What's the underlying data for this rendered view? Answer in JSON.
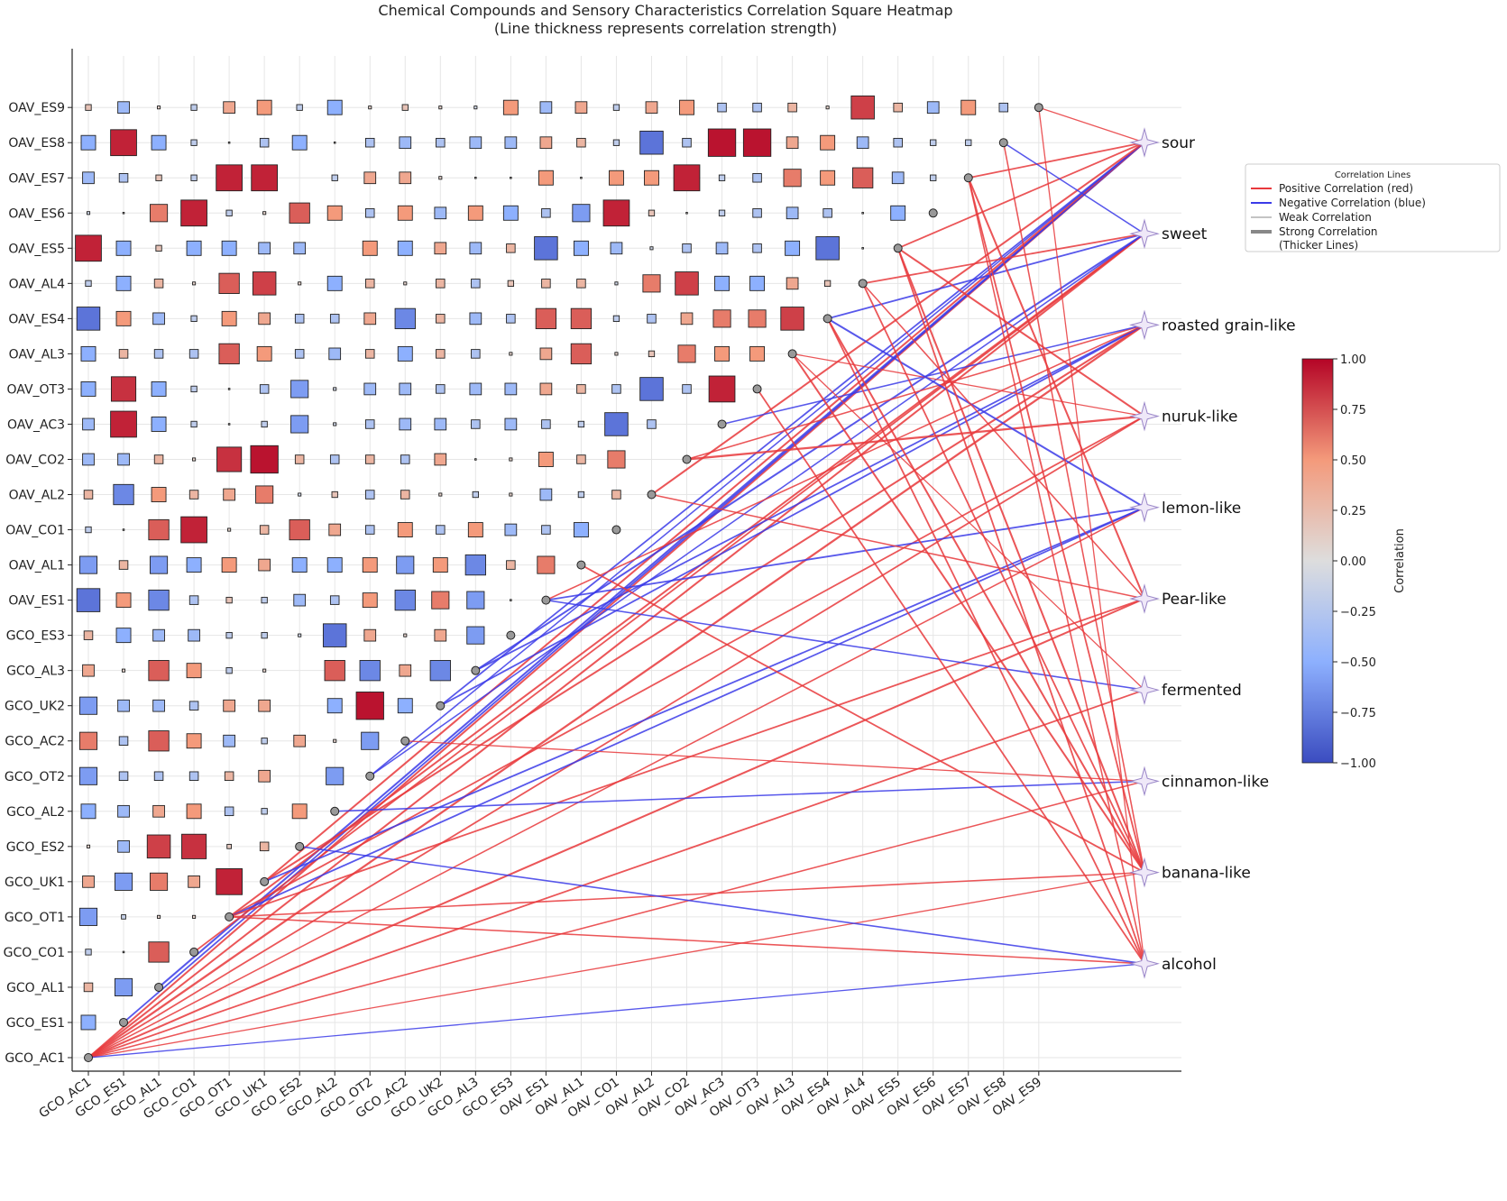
{
  "chart_data": {
    "type": "heatmap",
    "title": "Chemical Compounds and Sensory Characteristics Correlation Square Heatmap",
    "subtitle": "(Line thickness represents correlation strength)",
    "compounds": [
      "GCO_AC1",
      "GCO_ES1",
      "GCO_AL1",
      "GCO_CO1",
      "GCO_OT1",
      "GCO_UK1",
      "GCO_ES2",
      "GCO_AL2",
      "GCO_OT2",
      "GCO_AC2",
      "GCO_UK2",
      "GCO_AL3",
      "GCO_ES3",
      "OAV_ES1",
      "OAV_AL1",
      "OAV_CO1",
      "OAV_AL2",
      "OAV_CO2",
      "OAV_AC3",
      "OAV_OT3",
      "OAV_AL3",
      "OAV_ES4",
      "OAV_AL4",
      "OAV_ES5",
      "OAV_ES6",
      "OAV_ES7",
      "OAV_ES8",
      "OAV_ES9"
    ],
    "sensory": [
      "sour",
      "sweet",
      "roasted grain-like",
      "nuruk-like",
      "lemon-like",
      "Pear-like",
      "fermented",
      "cinnamon-like",
      "banana-like",
      "alcohol"
    ],
    "lower_triangle_values": [
      [],
      [
        -0.5
      ],
      [
        0.3,
        -0.6
      ],
      [
        -0.2,
        0.05,
        0.7
      ],
      [
        -0.6,
        -0.15,
        0.1,
        0.1
      ],
      [
        0.4,
        -0.6,
        0.6,
        0.4,
        0.9
      ],
      [
        0.1,
        -0.4,
        0.8,
        0.85,
        0.15,
        0.3
      ],
      [
        -0.5,
        -0.4,
        0.4,
        0.5,
        -0.3,
        -0.2,
        0.5
      ],
      [
        -0.6,
        -0.3,
        -0.3,
        -0.3,
        0.3,
        0.4,
        0.0,
        -0.6
      ],
      [
        0.6,
        -0.3,
        0.7,
        0.5,
        -0.4,
        -0.2,
        0.4,
        0.1,
        -0.6
      ],
      [
        -0.6,
        -0.4,
        -0.4,
        -0.3,
        0.4,
        0.4,
        0.0,
        -0.5,
        0.95,
        -0.5
      ],
      [
        0.4,
        0.1,
        0.7,
        0.5,
        -0.2,
        0.1,
        0.0,
        0.7,
        -0.7,
        0.4,
        -0.7
      ],
      [
        0.3,
        -0.5,
        -0.4,
        -0.4,
        -0.2,
        -0.2,
        -0.1,
        -0.8,
        0.4,
        0.1,
        0.4,
        -0.6
      ],
      [
        -0.8,
        0.5,
        -0.7,
        -0.3,
        0.2,
        -0.2,
        -0.4,
        -0.3,
        0.5,
        -0.7,
        0.6,
        -0.6,
        0.05
      ],
      [
        -0.6,
        0.3,
        -0.6,
        -0.5,
        0.5,
        0.4,
        -0.5,
        -0.5,
        0.5,
        -0.6,
        0.5,
        -0.7,
        0.3,
        0.6
      ],
      [
        -0.2,
        0.05,
        0.7,
        0.9,
        0.1,
        0.3,
        0.7,
        0.4,
        -0.3,
        0.5,
        -0.3,
        0.5,
        -0.4,
        -0.3,
        -0.5
      ],
      [
        0.3,
        -0.7,
        0.5,
        0.3,
        0.4,
        0.6,
        -0.1,
        0.2,
        -0.3,
        0.3,
        0.1,
        -0.2,
        0.1,
        -0.4,
        -0.2,
        0.3
      ],
      [
        -0.4,
        -0.4,
        0.3,
        0.1,
        0.85,
        0.95,
        0.3,
        -0.3,
        0.3,
        -0.3,
        0.4,
        0.05,
        0.1,
        0.5,
        0.3,
        0.6
      ],
      [
        -0.4,
        0.9,
        -0.5,
        -0.2,
        0.05,
        -0.2,
        -0.6,
        -0.1,
        -0.3,
        -0.4,
        -0.4,
        -0.3,
        -0.4,
        -0.3,
        -0.2,
        -0.8,
        -0.3
      ],
      [
        -0.5,
        0.85,
        -0.5,
        -0.2,
        0.05,
        -0.3,
        -0.6,
        -0.1,
        -0.4,
        -0.4,
        -0.3,
        -0.4,
        -0.4,
        0.4,
        0.3,
        -0.3,
        -0.8,
        -0.3,
        0.9
      ],
      [
        -0.5,
        0.3,
        -0.3,
        -0.3,
        0.7,
        0.5,
        -0.3,
        -0.4,
        0.3,
        -0.5,
        0.3,
        -0.3,
        0.1,
        0.4,
        0.7,
        0.1,
        0.2,
        0.6,
        0.5,
        0.5
      ],
      [
        -0.8,
        0.5,
        -0.4,
        -0.2,
        0.5,
        0.4,
        -0.3,
        -0.3,
        0.4,
        -0.7,
        0.3,
        -0.4,
        -0.3,
        0.7,
        0.7,
        -0.2,
        -0.3,
        0.4,
        0.6,
        0.6,
        0.8
      ],
      [
        -0.2,
        -0.5,
        0.3,
        0.1,
        0.7,
        0.8,
        0.1,
        -0.5,
        0.3,
        0.1,
        0.3,
        -0.3,
        0.2,
        0.3,
        0.3,
        -0.1,
        0.6,
        0.8,
        -0.5,
        -0.5,
        0.4,
        0.2
      ],
      [
        0.9,
        -0.5,
        0.2,
        -0.5,
        -0.5,
        -0.4,
        -0.4,
        0.0,
        0.5,
        -0.5,
        0.4,
        -0.4,
        0.3,
        -0.8,
        -0.5,
        -0.4,
        -0.1,
        -0.3,
        -0.4,
        -0.3,
        -0.5,
        -0.8,
        -0.05
      ],
      [
        -0.1,
        0.05,
        0.6,
        0.9,
        -0.2,
        0.1,
        0.7,
        0.5,
        -0.3,
        0.5,
        -0.4,
        0.5,
        -0.5,
        -0.3,
        -0.6,
        0.9,
        0.2,
        0.05,
        -0.2,
        -0.3,
        -0.4,
        -0.3,
        0.05,
        -0.5
      ],
      [
        -0.4,
        -0.3,
        0.2,
        -0.2,
        0.9,
        0.9,
        0.0,
        -0.2,
        0.4,
        0.4,
        0.1,
        0.05,
        0.05,
        0.5,
        0.05,
        0.5,
        0.5,
        0.9,
        -0.2,
        -0.3,
        0.6,
        0.5,
        0.7,
        -0.4,
        -0.2
      ],
      [
        -0.5,
        0.9,
        -0.5,
        -0.2,
        0.05,
        -0.3,
        -0.5,
        0.05,
        -0.3,
        -0.4,
        -0.3,
        -0.4,
        -0.4,
        0.4,
        0.3,
        -0.2,
        -0.8,
        -0.3,
        0.95,
        0.95,
        0.4,
        0.5,
        -0.4,
        -0.3,
        -0.2,
        -0.2
      ],
      [
        0.2,
        -0.4,
        0.1,
        -0.2,
        0.4,
        0.5,
        -0.2,
        -0.5,
        0.1,
        0.2,
        0.1,
        -0.1,
        0.5,
        -0.4,
        0.4,
        -0.2,
        0.4,
        0.5,
        -0.3,
        -0.3,
        0.3,
        0.1,
        0.8,
        0.3,
        -0.4,
        0.5,
        -0.3
      ]
    ],
    "links": [
      [
        0,
        0,
        0.6
      ],
      [
        0,
        1,
        0.6
      ],
      [
        0,
        2,
        0.7
      ],
      [
        0,
        3,
        0.5
      ],
      [
        0,
        4,
        0.4
      ],
      [
        0,
        5,
        0.6
      ],
      [
        0,
        6,
        0.5
      ],
      [
        0,
        7,
        0.4
      ],
      [
        0,
        8,
        0.3
      ],
      [
        0,
        9,
        -0.3
      ],
      [
        1,
        0,
        -0.5
      ],
      [
        2,
        0,
        -0.6
      ],
      [
        3,
        1,
        0.5
      ],
      [
        4,
        1,
        0.6
      ],
      [
        4,
        3,
        0.5
      ],
      [
        4,
        4,
        -0.5
      ],
      [
        4,
        5,
        0.5
      ],
      [
        4,
        8,
        0.4
      ],
      [
        4,
        9,
        0.4
      ],
      [
        5,
        0,
        0.6
      ],
      [
        5,
        2,
        0.6
      ],
      [
        5,
        4,
        -0.5
      ],
      [
        6,
        9,
        -0.4
      ],
      [
        7,
        7,
        -0.4
      ],
      [
        8,
        0,
        -0.4
      ],
      [
        8,
        1,
        -0.4
      ],
      [
        9,
        7,
        0.3
      ],
      [
        10,
        0,
        -0.5
      ],
      [
        10,
        2,
        -0.5
      ],
      [
        11,
        1,
        -0.6
      ],
      [
        11,
        2,
        -0.5
      ],
      [
        13,
        4,
        -0.5
      ],
      [
        13,
        6,
        -0.4
      ],
      [
        13,
        2,
        0.4
      ],
      [
        14,
        8,
        0.5
      ],
      [
        16,
        0,
        0.6
      ],
      [
        16,
        5,
        0.4
      ],
      [
        17,
        3,
        0.7
      ],
      [
        17,
        2,
        0.4
      ],
      [
        18,
        2,
        -0.4
      ],
      [
        19,
        9,
        0.5
      ],
      [
        20,
        8,
        0.6
      ],
      [
        20,
        6,
        0.3
      ],
      [
        20,
        3,
        0.3
      ],
      [
        21,
        1,
        -0.5
      ],
      [
        21,
        4,
        -0.6
      ],
      [
        21,
        8,
        0.6
      ],
      [
        21,
        9,
        0.5
      ],
      [
        22,
        1,
        0.5
      ],
      [
        22,
        5,
        0.4
      ],
      [
        22,
        8,
        0.5
      ],
      [
        23,
        3,
        0.6
      ],
      [
        23,
        8,
        0.6
      ],
      [
        23,
        9,
        0.5
      ],
      [
        23,
        0,
        0.5
      ],
      [
        25,
        0,
        0.5
      ],
      [
        25,
        5,
        0.6
      ],
      [
        25,
        8,
        0.5
      ],
      [
        25,
        9,
        0.4
      ],
      [
        26,
        1,
        -0.4
      ],
      [
        26,
        8,
        0.4
      ],
      [
        27,
        9,
        0.3
      ],
      [
        27,
        0,
        0.3
      ]
    ],
    "xlabel": "",
    "ylabel": "",
    "colorbar": {
      "label": "Correlation",
      "ticks": [
        "1.00",
        "0.75",
        "0.50",
        "0.25",
        "0.00",
        "−0.25",
        "−0.50",
        "−0.75",
        "−1.00"
      ],
      "range": [
        -1,
        1
      ]
    },
    "legend": {
      "title": "Correlation Lines",
      "items": [
        "Positive Correlation (red)",
        "Negative Correlation (blue)",
        "Weak Correlation",
        "Strong Correlation\n(Thicker Lines)"
      ],
      "position": "top-right"
    },
    "colors": {
      "positive": "#e8393c",
      "negative": "#3b3be8",
      "node": "#999999"
    }
  }
}
